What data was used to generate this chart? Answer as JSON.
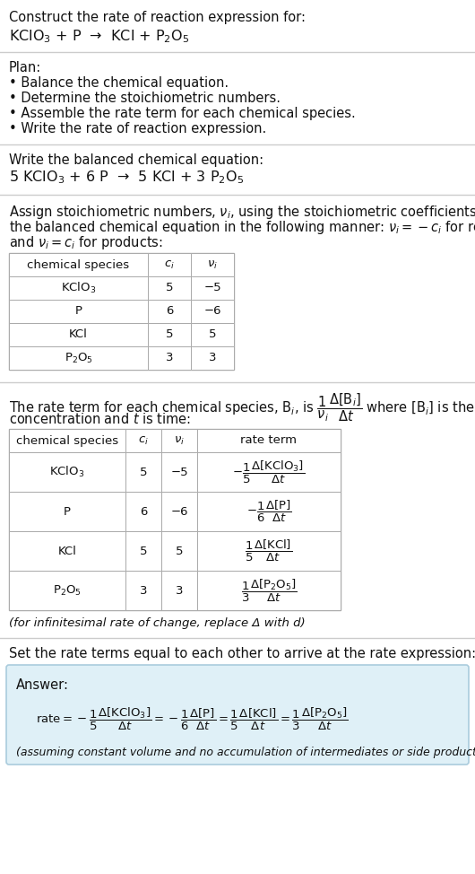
{
  "bg_color": "#ffffff",
  "text_color": "#111111",
  "light_blue_bg": "#dff0f7",
  "table_border_color": "#aaaaaa",
  "section_line_color": "#cccccc",
  "answer_border_color": "#aaccdd",
  "title_text": "Construct the rate of reaction expression for:",
  "reaction_unbalanced": "KClO$_3$ + P  →  KCl + P$_2$O$_5$",
  "plan_header": "Plan:",
  "plan_items": [
    "• Balance the chemical equation.",
    "• Determine the stoichiometric numbers.",
    "• Assemble the rate term for each chemical species.",
    "• Write the rate of reaction expression."
  ],
  "balanced_header": "Write the balanced chemical equation:",
  "balanced_eq": "5 KClO$_3$ + 6 P  →  5 KCl + 3 P$_2$O$_5$",
  "stoich_intro_lines": [
    "Assign stoichiometric numbers, $\\nu_i$, using the stoichiometric coefficients, $c_i$, from",
    "the balanced chemical equation in the following manner: $\\nu_i = -c_i$ for reactants",
    "and $\\nu_i = c_i$ for products:"
  ],
  "table1_headers": [
    "chemical species",
    "$c_i$",
    "$\\nu_i$"
  ],
  "table1_rows": [
    [
      "KClO$_3$",
      "5",
      "−5"
    ],
    [
      "P",
      "6",
      "−6"
    ],
    [
      "KCl",
      "5",
      "5"
    ],
    [
      "P$_2$O$_5$",
      "3",
      "3"
    ]
  ],
  "rate_term_intro_line1": "The rate term for each chemical species, B$_i$, is $\\dfrac{1}{\\nu_i}\\dfrac{\\Delta[\\mathrm{B}_i]}{\\Delta t}$ where [B$_i$] is the amount",
  "rate_term_intro_line2": "concentration and $t$ is time:",
  "table2_headers": [
    "chemical species",
    "$c_i$",
    "$\\nu_i$",
    "rate term"
  ],
  "table2_rows": [
    [
      "KClO$_3$",
      "5",
      "−5",
      "$-\\dfrac{1}{5}\\dfrac{\\Delta[\\mathrm{KClO_3}]}{\\Delta t}$"
    ],
    [
      "P",
      "6",
      "−6",
      "$-\\dfrac{1}{6}\\dfrac{\\Delta[\\mathrm{P}]}{\\Delta t}$"
    ],
    [
      "KCl",
      "5",
      "5",
      "$\\dfrac{1}{5}\\dfrac{\\Delta[\\mathrm{KCl}]}{\\Delta t}$"
    ],
    [
      "P$_2$O$_5$",
      "3",
      "3",
      "$\\dfrac{1}{3}\\dfrac{\\Delta[\\mathrm{P_2O_5}]}{\\Delta t}$"
    ]
  ],
  "infinitesimal_note": "(for infinitesimal rate of change, replace Δ with d)",
  "set_equal_text": "Set the rate terms equal to each other to arrive at the rate expression:",
  "answer_label": "Answer:",
  "rate_expression": "$\\mathrm{rate} = -\\dfrac{1}{5}\\dfrac{\\Delta[\\mathrm{KClO_3}]}{\\Delta t} = -\\dfrac{1}{6}\\dfrac{\\Delta[\\mathrm{P}]}{\\Delta t} = \\dfrac{1}{5}\\dfrac{\\Delta[\\mathrm{KCl}]}{\\Delta t} = \\dfrac{1}{3}\\dfrac{\\Delta[\\mathrm{P_2O_5}]}{\\Delta t}$",
  "assuming_note": "(assuming constant volume and no accumulation of intermediates or side products)"
}
